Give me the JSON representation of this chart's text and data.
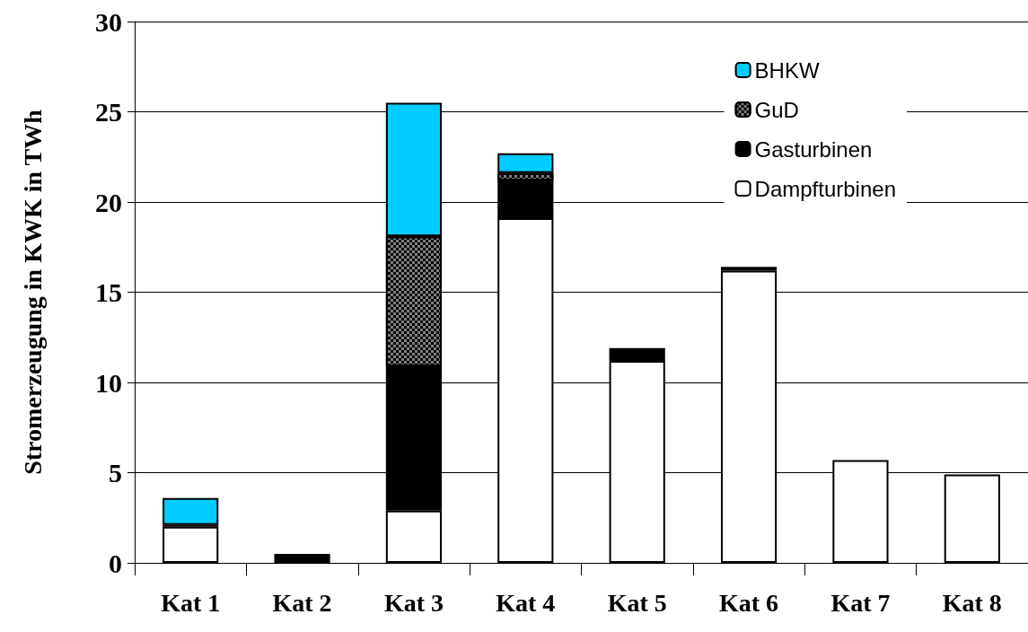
{
  "chart_data": {
    "type": "bar",
    "stacked": true,
    "ylabel": "Stromerzeugung in KWK in TWh",
    "categories": [
      "Kat 1",
      "Kat 2",
      "Kat 3",
      "Kat 4",
      "Kat 5",
      "Kat 6",
      "Kat 7",
      "Kat 8"
    ],
    "series": [
      {
        "name": "Dampfturbinen",
        "color": "#ffffff",
        "values": [
          2.0,
          0,
          2.9,
          19.1,
          11.2,
          16.2,
          5.7,
          4.9
        ]
      },
      {
        "name": "Gasturbinen",
        "color": "#000000",
        "values": [
          0.1,
          0.5,
          8.0,
          2.1,
          0.7,
          0.2,
          0,
          0
        ]
      },
      {
        "name": "GuD",
        "color": "#808080",
        "values": [
          0,
          0,
          7.2,
          0.4,
          0,
          0,
          0,
          0
        ]
      },
      {
        "name": "BHKW",
        "color": "#00ccff",
        "values": [
          1.5,
          0,
          7.4,
          1.1,
          0,
          0,
          0,
          0
        ]
      }
    ],
    "ylim": [
      0,
      30
    ],
    "yticks": [
      0,
      5,
      10,
      15,
      20,
      25,
      30
    ],
    "grid": "y",
    "legend": "top right"
  }
}
